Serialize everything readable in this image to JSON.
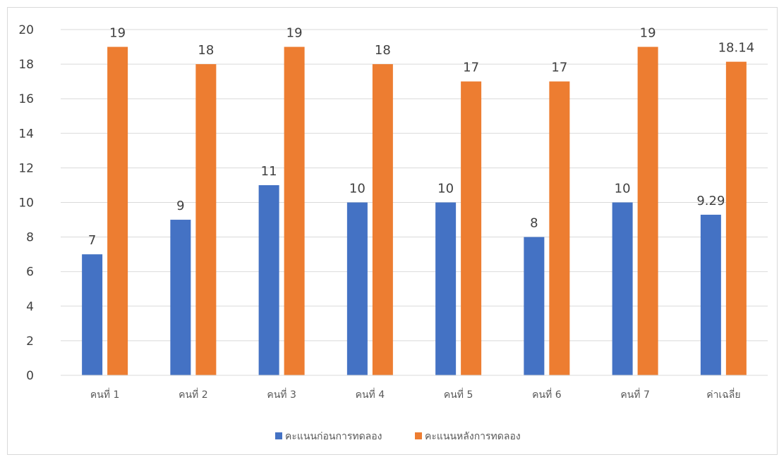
{
  "chart_data": {
    "type": "bar",
    "categories": [
      "คนที่ 1",
      "คนที่ 2",
      "คนที่ 3",
      "คนที่ 4",
      "คนที่ 5",
      "คนที่ 6",
      "คนที่ 7",
      "ค่าเฉลี่ย"
    ],
    "series": [
      {
        "name": "คะแนนก่อนการทดลอง",
        "color": "#4472c4",
        "values": [
          7,
          9,
          11,
          10,
          10,
          8,
          10,
          9.29
        ],
        "labels": [
          "7",
          "9",
          "11",
          "10",
          "10",
          "8",
          "10",
          "9.29"
        ]
      },
      {
        "name": "คะแนนหลังการทดลอง",
        "color": "#ed7d31",
        "values": [
          19,
          18,
          19,
          18,
          17,
          17,
          19,
          18.14
        ],
        "labels": [
          "19",
          "18",
          "19",
          "18",
          "17",
          "17",
          "19",
          "18.14"
        ]
      }
    ],
    "yticks": [
      "0",
      "2",
      "4",
      "6",
      "8",
      "10",
      "12",
      "14",
      "16",
      "18",
      "20"
    ],
    "ylim": [
      0,
      20
    ],
    "grid": true,
    "legend_position": "bottom",
    "title": "",
    "xlabel": "",
    "ylabel": ""
  }
}
